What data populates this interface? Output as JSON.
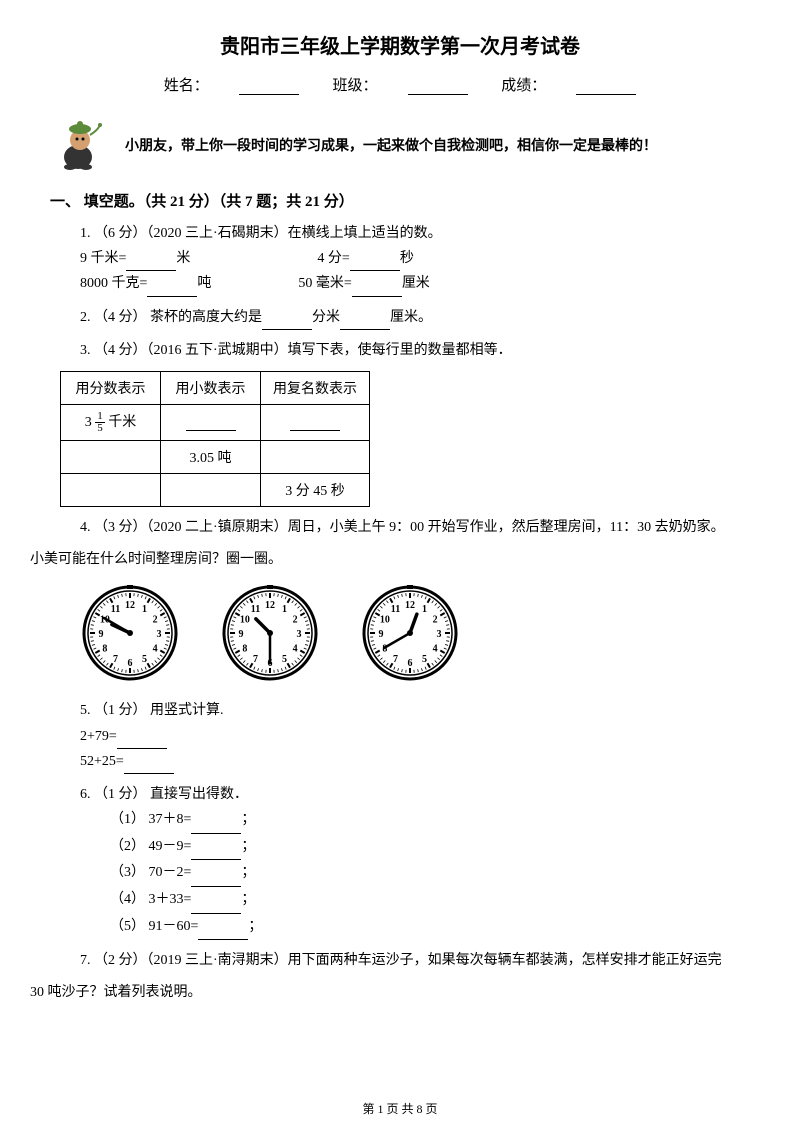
{
  "title": "贵阳市三年级上学期数学第一次月考试卷",
  "info": {
    "name_label": "姓名：",
    "class_label": "班级：",
    "score_label": "成绩："
  },
  "intro": "小朋友，带上你一段时间的学习成果，一起来做个自我检测吧，相信你一定是最棒的！",
  "section1": {
    "header": "一、 填空题。（共 21 分）（共 7 题；共 21 分）",
    "q1": {
      "prefix": "1. （6 分）（2020 三上·石碣期末）在横线上填上适当的数。",
      "line1a": "9 千米=",
      "line1b": "米",
      "line1c": "4 分=",
      "line1d": "秒",
      "line2a": "8000 千克=",
      "line2b": "吨",
      "line2c": "50 毫米=",
      "line2d": "厘米"
    },
    "q2": {
      "prefix": "2. （4 分） 茶杯的高度大约是",
      "mid": "分米",
      "end": "厘米。"
    },
    "q3": {
      "prefix": "3. （4 分）（2016 五下·武城期中）填写下表，使每行里的数量都相等．",
      "table": {
        "h1": "用分数表示",
        "h2": "用小数表示",
        "h3": "用复名数表示",
        "r1c1_pre": "3 ",
        "r1c1_num": "1",
        "r1c1_den": "5",
        "r1c1_post": " 千米",
        "r2c2": "3.05 吨",
        "r3c3": "3 分 45 秒"
      }
    },
    "q4": {
      "line1": "4. （3 分）（2020 二上·镇原期末）周日，小美上午 9：00 开始写作业，然后整理房间，11：30 去奶奶家。",
      "line2": "小美可能在什么时间整理房间？圈一圈。"
    },
    "q5": {
      "prefix": "5. （1 分） 用竖式计算.",
      "a": "2+79=",
      "b": "52+25="
    },
    "q6": {
      "prefix": "6. （1 分） 直接写出得数．",
      "items": [
        "（1） 37＋8=",
        "（2） 49－9=",
        "（3） 70－2=",
        "（4） 3＋33=",
        "（5） 91－60="
      ]
    },
    "q7": {
      "line1": "7. （2 分）（2019 三上·南浔期末）用下面两种车运沙子，如果每次每辆车都装满，怎样安排才能正好运完",
      "line2": "30 吨沙子？试着列表说明。"
    }
  },
  "clocks": [
    {
      "hour": 9,
      "minute": 50
    },
    {
      "hour": 10,
      "minute": 30
    },
    {
      "hour": 12,
      "minute": 40
    }
  ],
  "page_footer": "第 1 页 共 8 页",
  "colors": {
    "text": "#000000",
    "mascot_green": "#5a8a3a",
    "mascot_skin": "#d4a070",
    "mascot_dark": "#333333"
  }
}
